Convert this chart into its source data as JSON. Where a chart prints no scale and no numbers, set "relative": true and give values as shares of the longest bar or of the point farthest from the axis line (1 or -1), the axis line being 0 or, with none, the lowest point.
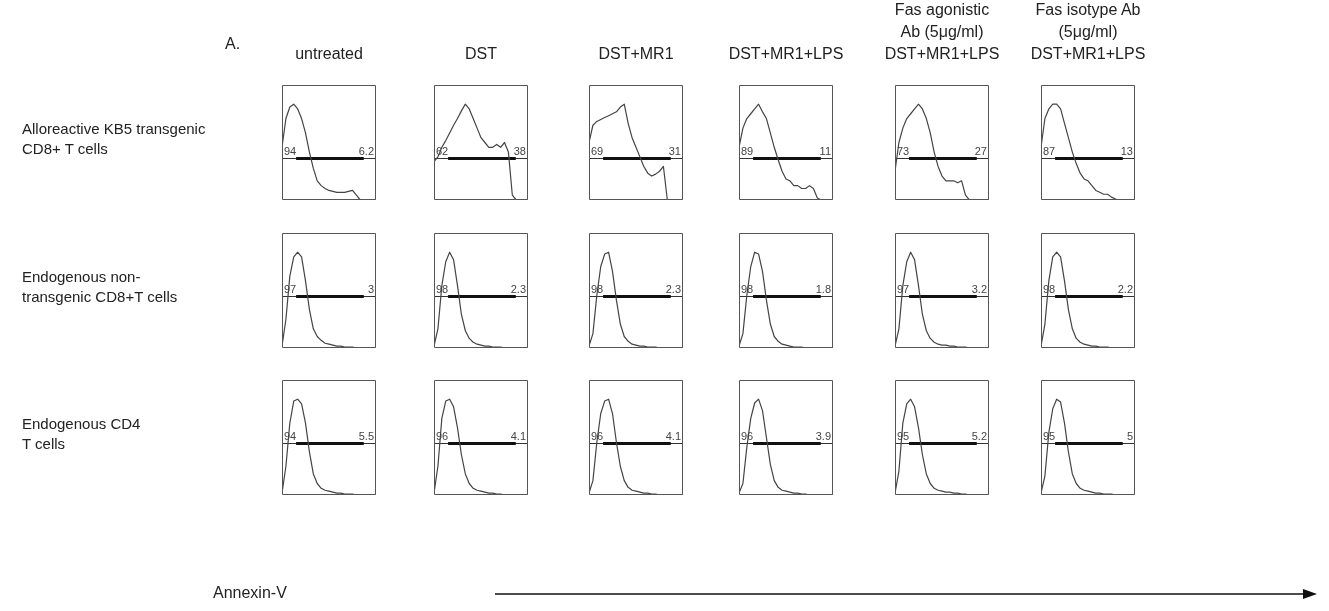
{
  "chart_data": [
    {
      "type": "line",
      "relative": true,
      "title": "untreated",
      "ylabel": "Alloreactive KB5 transgenic CD8+ T cells",
      "categories": [
        null,
        null,
        null,
        null,
        null,
        null,
        null,
        null,
        null,
        null,
        null,
        null,
        null,
        null,
        null,
        null,
        null,
        null,
        null,
        null,
        null,
        null,
        null,
        null,
        null
      ],
      "color": "#444444",
      "values": [
        0.55,
        0.85,
        0.97,
        1,
        0.95,
        0.85,
        0.7,
        0.5,
        0.33,
        0.2,
        0.15,
        0.12,
        0.1,
        0.09,
        0.08,
        0.08,
        0.08,
        0.09,
        0.1,
        0.05,
        0,
        0,
        0,
        0,
        0
      ],
      "ref_lines": [
        {
          "axis": "y",
          "value": 0.44
        }
      ],
      "annotations": [
        "94",
        "6.2",
        "A."
      ]
    },
    {
      "type": "line",
      "relative": true,
      "title": "DST",
      "categories": [
        null,
        null,
        null,
        null,
        null,
        null,
        null,
        null,
        null,
        null,
        null,
        null,
        null,
        null,
        null,
        null,
        null,
        null,
        null,
        null,
        null,
        null,
        null,
        null,
        null
      ],
      "color": "#444444",
      "values": [
        0.4,
        0.45,
        0.55,
        0.62,
        0.7,
        0.78,
        0.85,
        0.93,
        1,
        0.95,
        0.85,
        0.75,
        0.65,
        0.6,
        0.55,
        0.55,
        0.58,
        0.55,
        0.6,
        0.5,
        0.05,
        0,
        0,
        0,
        0
      ],
      "ref_lines": [
        {
          "axis": "y",
          "value": 0.44
        }
      ],
      "annotations": [
        "62",
        "38"
      ]
    },
    {
      "type": "line",
      "relative": true,
      "title": "DST+MR1",
      "categories": [
        null,
        null,
        null,
        null,
        null,
        null,
        null,
        null,
        null,
        null,
        null,
        null,
        null,
        null,
        null,
        null,
        null,
        null,
        null,
        null,
        null,
        null,
        null,
        null,
        null
      ],
      "color": "#444444",
      "values": [
        0.6,
        0.78,
        0.82,
        0.84,
        0.86,
        0.88,
        0.9,
        0.92,
        0.97,
        1,
        0.8,
        0.65,
        0.55,
        0.45,
        0.35,
        0.28,
        0.25,
        0.27,
        0.3,
        0.35,
        0,
        0,
        0,
        0,
        0
      ],
      "ref_lines": [
        {
          "axis": "y",
          "value": 0.44
        }
      ],
      "annotations": [
        "69",
        "31"
      ]
    },
    {
      "type": "line",
      "relative": true,
      "title": "DST+MR1+LPS",
      "categories": [
        null,
        null,
        null,
        null,
        null,
        null,
        null,
        null,
        null,
        null,
        null,
        null,
        null,
        null,
        null,
        null,
        null,
        null,
        null,
        null,
        null,
        null,
        null,
        null,
        null
      ],
      "color": "#444444",
      "values": [
        0.55,
        0.75,
        0.85,
        0.9,
        0.95,
        1,
        0.92,
        0.85,
        0.7,
        0.55,
        0.42,
        0.3,
        0.22,
        0.2,
        0.15,
        0.15,
        0.12,
        0.12,
        0.15,
        0.12,
        0.02,
        0,
        0,
        0,
        0
      ],
      "ref_lines": [
        {
          "axis": "y",
          "value": 0.44
        }
      ],
      "annotations": [
        "89",
        "11"
      ]
    },
    {
      "type": "line",
      "relative": true,
      "title": "DST+MR1+LPS",
      "subtitle": "Fas agonistic Ab (5μg/ml)",
      "categories": [
        null,
        null,
        null,
        null,
        null,
        null,
        null,
        null,
        null,
        null,
        null,
        null,
        null,
        null,
        null,
        null,
        null,
        null,
        null,
        null,
        null,
        null,
        null,
        null,
        null
      ],
      "color": "#444444",
      "values": [
        0.3,
        0.6,
        0.75,
        0.85,
        0.9,
        0.95,
        1,
        0.95,
        0.85,
        0.7,
        0.5,
        0.35,
        0.25,
        0.2,
        0.2,
        0.2,
        0.18,
        0.2,
        0.05,
        0,
        0,
        0,
        0,
        0,
        0
      ],
      "ref_lines": [
        {
          "axis": "y",
          "value": 0.44
        }
      ],
      "annotations": [
        "73",
        "27"
      ]
    },
    {
      "type": "line",
      "relative": true,
      "title": "DST+MR1+LPS",
      "subtitle": "Fas isotype Ab (5μg/ml)",
      "categories": [
        null,
        null,
        null,
        null,
        null,
        null,
        null,
        null,
        null,
        null,
        null,
        null,
        null,
        null,
        null,
        null,
        null,
        null,
        null,
        null,
        null,
        null,
        null,
        null,
        null
      ],
      "color": "#444444",
      "values": [
        0.55,
        0.85,
        0.95,
        1,
        1,
        0.95,
        0.8,
        0.65,
        0.5,
        0.38,
        0.28,
        0.22,
        0.2,
        0.15,
        0.1,
        0.08,
        0.06,
        0.06,
        0.03,
        0.01,
        0,
        0,
        0,
        0,
        0
      ],
      "ref_lines": [
        {
          "axis": "y",
          "value": 0.44
        }
      ],
      "annotations": [
        "87",
        "13"
      ]
    },
    {
      "type": "line",
      "relative": true,
      "ylabel": "Endogenous non-transgenic CD8+T cells",
      "categories": [
        null,
        null,
        null,
        null,
        null,
        null,
        null,
        null,
        null,
        null,
        null,
        null,
        null,
        null,
        null,
        null,
        null,
        null,
        null,
        null,
        null,
        null,
        null,
        null,
        null
      ],
      "color": "#444444",
      "values": [
        0.02,
        0.3,
        0.75,
        0.95,
        1,
        0.95,
        0.7,
        0.4,
        0.2,
        0.12,
        0.08,
        0.05,
        0.04,
        0.03,
        0.02,
        0.02,
        0.01,
        0.01,
        0.01,
        0,
        0,
        0,
        0,
        0,
        0
      ],
      "ref_lines": [
        {
          "axis": "y",
          "value": 0.54
        }
      ],
      "annotations": [
        "97",
        "3"
      ]
    },
    {
      "type": "line",
      "relative": true,
      "categories": [
        null,
        null,
        null,
        null,
        null,
        null,
        null,
        null,
        null,
        null,
        null,
        null,
        null,
        null,
        null,
        null,
        null,
        null,
        null,
        null,
        null,
        null,
        null,
        null,
        null
      ],
      "color": "#444444",
      "values": [
        0.02,
        0.2,
        0.65,
        0.9,
        1,
        0.92,
        0.65,
        0.35,
        0.18,
        0.1,
        0.06,
        0.04,
        0.03,
        0.02,
        0.02,
        0.01,
        0.01,
        0.01,
        0,
        0,
        0,
        0,
        0,
        0,
        0
      ],
      "ref_lines": [
        {
          "axis": "y",
          "value": 0.54
        }
      ],
      "annotations": [
        "98",
        "2.3"
      ]
    },
    {
      "type": "line",
      "relative": true,
      "categories": [
        null,
        null,
        null,
        null,
        null,
        null,
        null,
        null,
        null,
        null,
        null,
        null,
        null,
        null,
        null,
        null,
        null,
        null,
        null,
        null,
        null,
        null,
        null,
        null,
        null
      ],
      "color": "#444444",
      "values": [
        0.02,
        0.15,
        0.55,
        0.85,
        0.98,
        1,
        0.8,
        0.5,
        0.25,
        0.12,
        0.07,
        0.04,
        0.03,
        0.02,
        0.02,
        0.01,
        0.01,
        0.01,
        0,
        0,
        0,
        0,
        0,
        0,
        0
      ],
      "ref_lines": [
        {
          "axis": "y",
          "value": 0.54
        }
      ],
      "annotations": [
        "98",
        "2.3"
      ]
    },
    {
      "type": "line",
      "relative": true,
      "categories": [
        null,
        null,
        null,
        null,
        null,
        null,
        null,
        null,
        null,
        null,
        null,
        null,
        null,
        null,
        null,
        null,
        null,
        null,
        null,
        null,
        null,
        null,
        null,
        null,
        null
      ],
      "color": "#444444",
      "values": [
        0.02,
        0.15,
        0.55,
        0.85,
        1,
        0.98,
        0.8,
        0.5,
        0.25,
        0.12,
        0.07,
        0.04,
        0.03,
        0.02,
        0.01,
        0.01,
        0.01,
        0,
        0,
        0,
        0,
        0,
        0,
        0,
        0
      ],
      "ref_lines": [
        {
          "axis": "y",
          "value": 0.54
        }
      ],
      "annotations": [
        "98",
        "1.8"
      ]
    },
    {
      "type": "line",
      "relative": true,
      "categories": [
        null,
        null,
        null,
        null,
        null,
        null,
        null,
        null,
        null,
        null,
        null,
        null,
        null,
        null,
        null,
        null,
        null,
        null,
        null,
        null,
        null,
        null,
        null,
        null,
        null
      ],
      "color": "#444444",
      "values": [
        0.02,
        0.2,
        0.65,
        0.9,
        1,
        0.92,
        0.65,
        0.35,
        0.18,
        0.1,
        0.06,
        0.04,
        0.03,
        0.03,
        0.02,
        0.02,
        0.01,
        0.01,
        0.01,
        0,
        0,
        0,
        0,
        0,
        0
      ],
      "ref_lines": [
        {
          "axis": "y",
          "value": 0.54
        }
      ],
      "annotations": [
        "97",
        "3.2"
      ]
    },
    {
      "type": "line",
      "relative": true,
      "categories": [
        null,
        null,
        null,
        null,
        null,
        null,
        null,
        null,
        null,
        null,
        null,
        null,
        null,
        null,
        null,
        null,
        null,
        null,
        null,
        null,
        null,
        null,
        null,
        null,
        null
      ],
      "color": "#444444",
      "values": [
        0.02,
        0.25,
        0.7,
        0.95,
        1,
        0.95,
        0.7,
        0.4,
        0.2,
        0.1,
        0.06,
        0.04,
        0.03,
        0.02,
        0.02,
        0.01,
        0.01,
        0.01,
        0,
        0,
        0,
        0,
        0,
        0,
        0
      ],
      "ref_lines": [
        {
          "axis": "y",
          "value": 0.54
        }
      ],
      "annotations": [
        "98",
        "2.2"
      ]
    },
    {
      "type": "line",
      "relative": true,
      "ylabel": "Endogenous CD4 T cells",
      "xlabel": "Annexin-V",
      "categories": [
        null,
        null,
        null,
        null,
        null,
        null,
        null,
        null,
        null,
        null,
        null,
        null,
        null,
        null,
        null,
        null,
        null,
        null,
        null,
        null,
        null,
        null,
        null,
        null,
        null
      ],
      "color": "#444444",
      "values": [
        0.02,
        0.3,
        0.75,
        0.98,
        1,
        0.95,
        0.75,
        0.45,
        0.22,
        0.12,
        0.07,
        0.05,
        0.04,
        0.03,
        0.02,
        0.02,
        0.01,
        0.01,
        0.01,
        0,
        0,
        0,
        0,
        0,
        0
      ],
      "ref_lines": [
        {
          "axis": "y",
          "value": 0.54
        }
      ],
      "annotations": [
        "94",
        "5.5"
      ]
    },
    {
      "type": "line",
      "relative": true,
      "categories": [
        null,
        null,
        null,
        null,
        null,
        null,
        null,
        null,
        null,
        null,
        null,
        null,
        null,
        null,
        null,
        null,
        null,
        null,
        null,
        null,
        null,
        null,
        null,
        null,
        null
      ],
      "color": "#444444",
      "values": [
        0.02,
        0.3,
        0.8,
        0.98,
        1,
        0.92,
        0.7,
        0.42,
        0.22,
        0.12,
        0.07,
        0.05,
        0.04,
        0.03,
        0.02,
        0.02,
        0.01,
        0.01,
        0,
        0,
        0,
        0,
        0,
        0,
        0
      ],
      "ref_lines": [
        {
          "axis": "y",
          "value": 0.54
        }
      ],
      "annotations": [
        "96",
        "4.1"
      ]
    },
    {
      "type": "line",
      "relative": true,
      "categories": [
        null,
        null,
        null,
        null,
        null,
        null,
        null,
        null,
        null,
        null,
        null,
        null,
        null,
        null,
        null,
        null,
        null,
        null,
        null,
        null,
        null,
        null,
        null,
        null,
        null
      ],
      "color": "#444444",
      "values": [
        0.02,
        0.15,
        0.55,
        0.85,
        0.98,
        1,
        0.85,
        0.55,
        0.3,
        0.15,
        0.08,
        0.05,
        0.04,
        0.03,
        0.02,
        0.02,
        0.01,
        0.01,
        0,
        0,
        0,
        0,
        0,
        0,
        0
      ],
      "ref_lines": [
        {
          "axis": "y",
          "value": 0.54
        }
      ],
      "annotations": [
        "96",
        "4.1"
      ]
    },
    {
      "type": "line",
      "relative": true,
      "categories": [
        null,
        null,
        null,
        null,
        null,
        null,
        null,
        null,
        null,
        null,
        null,
        null,
        null,
        null,
        null,
        null,
        null,
        null,
        null,
        null,
        null,
        null,
        null,
        null,
        null
      ],
      "color": "#444444",
      "values": [
        0.02,
        0.12,
        0.5,
        0.8,
        0.96,
        1,
        0.88,
        0.6,
        0.32,
        0.15,
        0.08,
        0.05,
        0.04,
        0.03,
        0.02,
        0.02,
        0.01,
        0.01,
        0,
        0,
        0,
        0,
        0,
        0,
        0
      ],
      "ref_lines": [
        {
          "axis": "y",
          "value": 0.54
        }
      ],
      "annotations": [
        "96",
        "3.9"
      ]
    },
    {
      "type": "line",
      "relative": true,
      "categories": [
        null,
        null,
        null,
        null,
        null,
        null,
        null,
        null,
        null,
        null,
        null,
        null,
        null,
        null,
        null,
        null,
        null,
        null,
        null,
        null,
        null,
        null,
        null,
        null,
        null
      ],
      "color": "#444444",
      "values": [
        0.02,
        0.25,
        0.75,
        0.95,
        1,
        0.92,
        0.7,
        0.42,
        0.22,
        0.12,
        0.07,
        0.05,
        0.04,
        0.03,
        0.03,
        0.02,
        0.02,
        0.01,
        0.01,
        0,
        0,
        0,
        0,
        0,
        0
      ],
      "ref_lines": [
        {
          "axis": "y",
          "value": 0.54
        }
      ],
      "annotations": [
        "95",
        "5.2"
      ]
    },
    {
      "type": "line",
      "relative": true,
      "categories": [
        null,
        null,
        null,
        null,
        null,
        null,
        null,
        null,
        null,
        null,
        null,
        null,
        null,
        null,
        null,
        null,
        null,
        null,
        null,
        null,
        null,
        null,
        null,
        null,
        null
      ],
      "color": "#444444",
      "values": [
        0.02,
        0.2,
        0.65,
        0.9,
        1,
        0.97,
        0.75,
        0.45,
        0.22,
        0.12,
        0.07,
        0.05,
        0.04,
        0.03,
        0.02,
        0.02,
        0.01,
        0.01,
        0.01,
        0,
        0,
        0,
        0,
        0,
        0
      ],
      "ref_lines": [
        {
          "axis": "y",
          "value": 0.54
        }
      ],
      "annotations": [
        "95",
        "5"
      ]
    }
  ]
}
